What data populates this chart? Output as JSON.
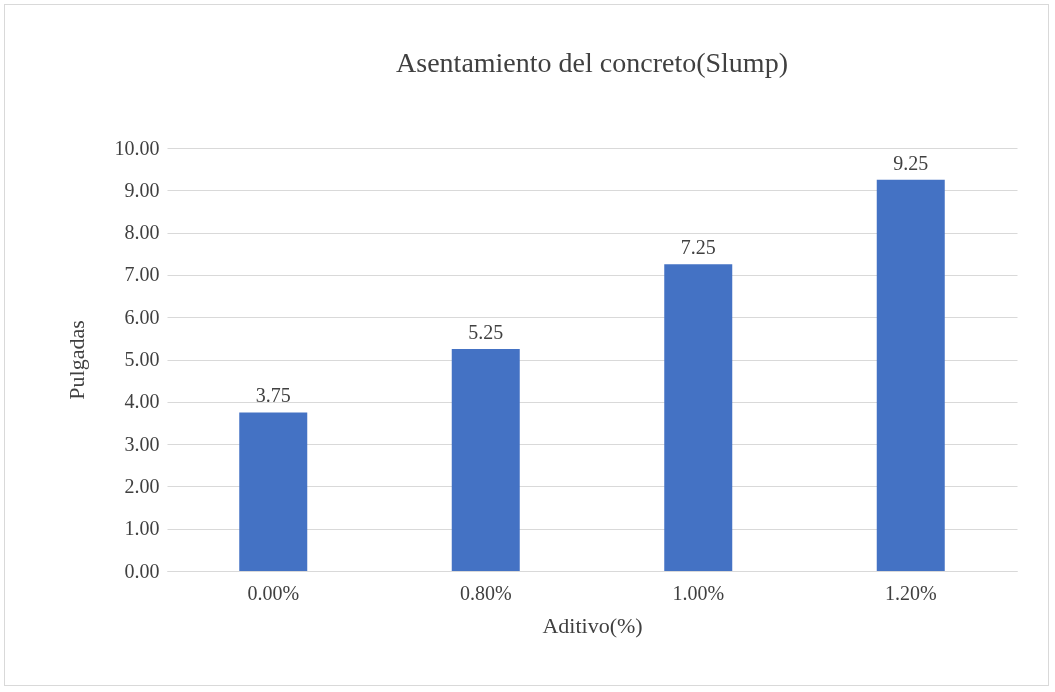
{
  "chart_data": {
    "type": "bar",
    "title": "Asentamiento del concreto(Slump)",
    "xlabel": "Aditivo(%)",
    "ylabel": "Pulgadas",
    "categories": [
      "0.00%",
      "0.80%",
      "1.00%",
      "1.20%"
    ],
    "values": [
      3.75,
      5.25,
      7.25,
      9.25
    ],
    "color": "#4472c4",
    "ylim": [
      0,
      10
    ],
    "yticks": [
      {
        "value": 0,
        "label": "0.00"
      },
      {
        "value": 1,
        "label": "1.00"
      },
      {
        "value": 2,
        "label": "2.00"
      },
      {
        "value": 3,
        "label": "3.00"
      },
      {
        "value": 4,
        "label": "4.00"
      },
      {
        "value": 5,
        "label": "5.00"
      },
      {
        "value": 6,
        "label": "6.00"
      },
      {
        "value": 7,
        "label": "7.00"
      },
      {
        "value": 8,
        "label": "8.00"
      },
      {
        "value": 9,
        "label": "9.00"
      },
      {
        "value": 10,
        "label": "10.00"
      }
    ],
    "grid": "y",
    "data_labels": true
  }
}
